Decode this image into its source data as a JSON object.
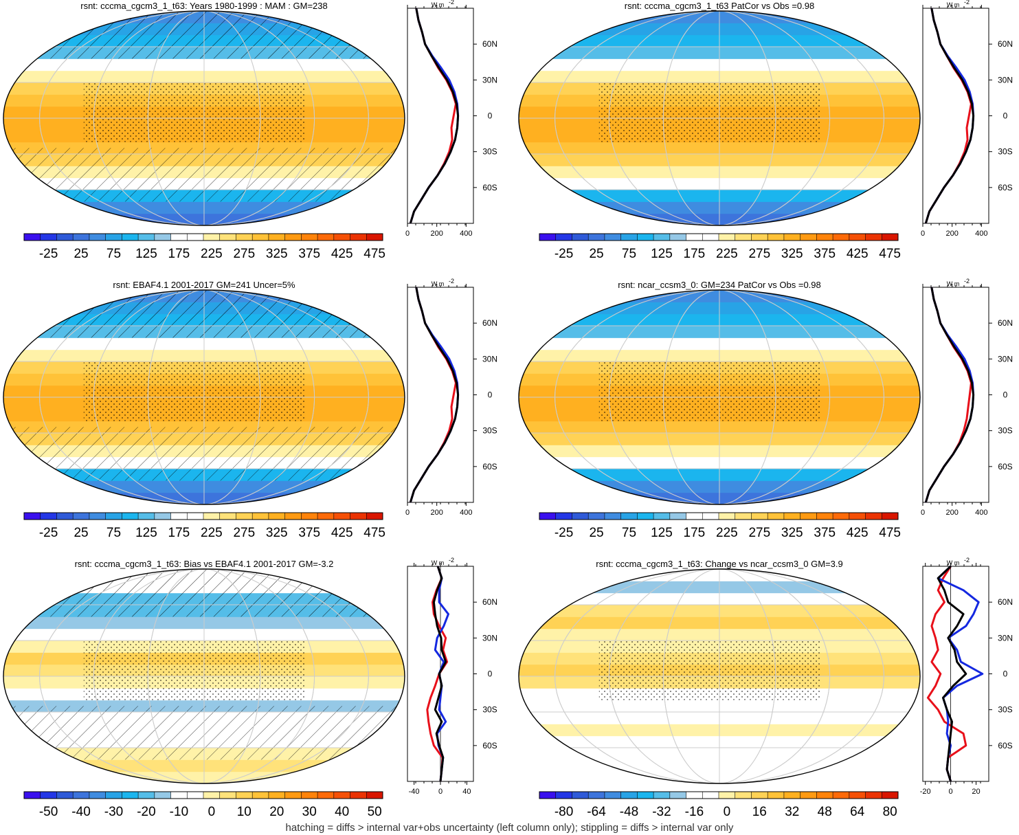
{
  "figure": {
    "footnote": "hatching = diffs > internal var+obs uncertainty (left column only); stippling = diffs > internal var only"
  },
  "palettes": {
    "abs": [
      "#3a10ee",
      "#2437e6",
      "#2f5ad8",
      "#3d74dc",
      "#3f8ce0",
      "#28a3e6",
      "#1bb5ee",
      "#55bde8",
      "#95c8e6",
      "#ffffff",
      "#ffffff",
      "#fff2a8",
      "#ffe27a",
      "#ffd255",
      "#ffc238",
      "#ffb020",
      "#ff9a12",
      "#ff830a",
      "#fd6a08",
      "#f55006",
      "#eb3303",
      "#d91600"
    ],
    "diff": [
      "#3a10ee",
      "#2437e6",
      "#2f5ad8",
      "#3d74dc",
      "#3f8ce0",
      "#28a3e6",
      "#1bb5ee",
      "#55bde8",
      "#95c8e6",
      "#ffffff",
      "#ffffff",
      "#fff2a8",
      "#ffe27a",
      "#ffd255",
      "#ffc238",
      "#ffb020",
      "#ff9a12",
      "#ff830a",
      "#fd6a08",
      "#f55006",
      "#eb3303",
      "#d91600"
    ],
    "profile_colors": {
      "black": "#000000",
      "red": "#e8101a",
      "blue": "#1428e0"
    }
  },
  "lat_labels": [
    "60N",
    "30N",
    "0",
    "30S",
    "60S"
  ],
  "unit_label": "W m",
  "unit_exponent": "-2",
  "chart_data": [
    {
      "type": "heatmap",
      "title": "rsnt: cccma_cgcm3_1_t63: Years 1980-1999 : MAM : GM=238",
      "colorbar_labels": [
        "-25",
        "25",
        "75",
        "125",
        "175",
        "225",
        "275",
        "325",
        "375",
        "425",
        "475"
      ],
      "value_range": [
        -50,
        500
      ],
      "hatching": true,
      "stippling": true,
      "profile": {
        "xlim": [
          0,
          450
        ],
        "xticks": [
          "0",
          "200",
          "400"
        ],
        "lat": [
          -90,
          -80,
          -70,
          -60,
          -50,
          -40,
          -30,
          -20,
          -10,
          0,
          10,
          20,
          30,
          40,
          50,
          60,
          70,
          80,
          90
        ],
        "series": [
          {
            "color": "black",
            "values": [
              20,
              45,
              95,
              145,
              205,
              255,
              295,
              325,
              340,
              345,
              335,
              310,
              270,
              215,
              165,
              120,
              100,
              75,
              60
            ]
          },
          {
            "color": "red",
            "values": [
              20,
              45,
              95,
              145,
              205,
              250,
              285,
              305,
              300,
              315,
              330,
              305,
              265,
              210,
              165,
              120,
              100,
              75,
              60
            ]
          },
          {
            "color": "blue",
            "values": [
              20,
              45,
              95,
              145,
              205,
              255,
              295,
              325,
              340,
              345,
              340,
              320,
              285,
              230,
              170,
              120,
              100,
              75,
              60
            ]
          }
        ]
      }
    },
    {
      "type": "heatmap",
      "title": "rsnt: cccma_cgcm3_1_t63 PatCor vs Obs =0.98",
      "colorbar_labels": [
        "-25",
        "25",
        "75",
        "125",
        "175",
        "225",
        "275",
        "325",
        "375",
        "425",
        "475"
      ],
      "value_range": [
        -50,
        500
      ],
      "hatching": false,
      "stippling": true,
      "profile": {
        "xlim": [
          0,
          450
        ],
        "xticks": [
          "0",
          "200",
          "400"
        ],
        "lat": [
          -90,
          -80,
          -70,
          -60,
          -50,
          -40,
          -30,
          -20,
          -10,
          0,
          10,
          20,
          30,
          40,
          50,
          60,
          70,
          80,
          90
        ],
        "series": [
          {
            "color": "black",
            "values": [
              20,
              45,
              95,
              145,
              205,
              255,
              295,
              325,
              340,
              345,
              335,
              310,
              270,
              215,
              165,
              120,
              100,
              75,
              60
            ]
          },
          {
            "color": "red",
            "values": [
              20,
              45,
              95,
              145,
              205,
              250,
              285,
              305,
              300,
              315,
              330,
              305,
              265,
              210,
              165,
              120,
              100,
              75,
              60
            ]
          },
          {
            "color": "blue",
            "values": [
              20,
              45,
              95,
              145,
              205,
              255,
              295,
              325,
              340,
              345,
              340,
              320,
              285,
              230,
              170,
              120,
              100,
              75,
              60
            ]
          }
        ]
      }
    },
    {
      "type": "heatmap",
      "title": "rsnt: EBAF4.1 2001-2017 GM=241 Uncer=5%",
      "colorbar_labels": [
        "-25",
        "25",
        "75",
        "125",
        "175",
        "225",
        "275",
        "325",
        "375",
        "425",
        "475"
      ],
      "value_range": [
        -50,
        500
      ],
      "hatching": true,
      "stippling": true,
      "profile": {
        "xlim": [
          0,
          450
        ],
        "xticks": [
          "0",
          "200",
          "400"
        ],
        "lat": [
          -90,
          -80,
          -70,
          -60,
          -50,
          -40,
          -30,
          -20,
          -10,
          0,
          10,
          20,
          30,
          40,
          50,
          60,
          70,
          80,
          90
        ],
        "series": [
          {
            "color": "black",
            "values": [
              20,
              45,
              95,
              145,
              205,
              255,
              295,
              325,
              340,
              345,
              335,
              310,
              270,
              215,
              165,
              120,
              100,
              75,
              60
            ]
          },
          {
            "color": "red",
            "values": [
              20,
              45,
              95,
              145,
              205,
              250,
              285,
              305,
              300,
              315,
              330,
              305,
              265,
              210,
              165,
              120,
              100,
              75,
              60
            ]
          },
          {
            "color": "blue",
            "values": [
              20,
              45,
              95,
              145,
              205,
              255,
              295,
              325,
              340,
              345,
              340,
              320,
              285,
              230,
              170,
              120,
              100,
              75,
              60
            ]
          }
        ]
      }
    },
    {
      "type": "heatmap",
      "title": "rsnt: ncar_ccsm3_0: GM=234 PatCor vs Obs =0.98",
      "colorbar_labels": [
        "-25",
        "25",
        "75",
        "125",
        "175",
        "225",
        "275",
        "325",
        "375",
        "425",
        "475"
      ],
      "value_range": [
        -50,
        500
      ],
      "hatching": false,
      "stippling": true,
      "profile": {
        "xlim": [
          0,
          450
        ],
        "xticks": [
          "0",
          "200",
          "400"
        ],
        "lat": [
          -90,
          -80,
          -70,
          -60,
          -50,
          -40,
          -30,
          -20,
          -10,
          0,
          10,
          20,
          30,
          40,
          50,
          60,
          70,
          80,
          90
        ],
        "series": [
          {
            "color": "black",
            "values": [
              20,
              45,
              95,
              145,
              205,
              255,
              295,
              325,
              340,
              345,
              335,
              310,
              270,
              215,
              165,
              120,
              100,
              75,
              60
            ]
          },
          {
            "color": "red",
            "values": [
              20,
              45,
              95,
              145,
              205,
              250,
              280,
              300,
              310,
              320,
              330,
              305,
              265,
              210,
              165,
              120,
              100,
              75,
              60
            ]
          },
          {
            "color": "blue",
            "values": [
              20,
              45,
              95,
              145,
              205,
              255,
              295,
              325,
              340,
              345,
              340,
              320,
              285,
              230,
              170,
              120,
              100,
              75,
              60
            ]
          }
        ]
      }
    },
    {
      "type": "heatmap",
      "title": "rsnt: cccma_cgcm3_1_t63: Bias vs EBAF4.1 2001-2017 GM=-3.2",
      "colorbar_labels": [
        "-50",
        "-40",
        "-30",
        "-20",
        "-10",
        "0",
        "10",
        "20",
        "30",
        "40",
        "50"
      ],
      "value_range": [
        -55,
        55
      ],
      "hatching": true,
      "stippling": true,
      "profile": {
        "xlim": [
          -50,
          50
        ],
        "xticks": [
          "-40",
          "0",
          "40"
        ],
        "lat": [
          -90,
          -80,
          -70,
          -60,
          -50,
          -40,
          -30,
          -20,
          -10,
          0,
          10,
          20,
          30,
          40,
          50,
          60,
          70,
          80,
          90
        ],
        "series": [
          {
            "color": "black",
            "values": [
              0,
              2,
              4,
              -2,
              -6,
              2,
              -8,
              -3,
              2,
              -2,
              8,
              2,
              1,
              -5,
              -8,
              -10,
              -5,
              2,
              -4
            ]
          },
          {
            "color": "red",
            "values": [
              0,
              2,
              3,
              -10,
              -15,
              -18,
              -20,
              -15,
              -8,
              -2,
              10,
              4,
              8,
              -2,
              -10,
              -12,
              -6,
              2,
              -4
            ]
          },
          {
            "color": "blue",
            "values": [
              0,
              2,
              4,
              -3,
              -5,
              8,
              -2,
              0,
              2,
              -2,
              5,
              -8,
              -5,
              5,
              12,
              -2,
              -2,
              2,
              -4
            ]
          }
        ]
      }
    },
    {
      "type": "heatmap",
      "title": "rsnt: cccma_cgcm3_1_t63: Change vs ncar_ccsm3_0 GM=3.9",
      "colorbar_labels": [
        "-80",
        "-64",
        "-48",
        "-32",
        "-16",
        "0",
        "16",
        "32",
        "48",
        "64",
        "80"
      ],
      "value_range": [
        -88,
        88
      ],
      "hatching": false,
      "stippling": true,
      "profile": {
        "xlim": [
          -22,
          30
        ],
        "xticks": [
          "-20",
          "0",
          "20"
        ],
        "lat": [
          -90,
          -80,
          -70,
          -60,
          -50,
          -40,
          -30,
          -20,
          -10,
          0,
          10,
          20,
          30,
          40,
          50,
          60,
          70,
          80,
          90
        ],
        "series": [
          {
            "color": "black",
            "values": [
              0,
              -3,
              -2,
              -1,
              0,
              1,
              -3,
              -6,
              2,
              12,
              5,
              3,
              -2,
              5,
              10,
              -2,
              -5,
              -10,
              0
            ]
          },
          {
            "color": "red",
            "values": [
              0,
              -3,
              -2,
              12,
              10,
              -5,
              -10,
              -18,
              -12,
              -8,
              -15,
              -10,
              -12,
              -15,
              -12,
              -5,
              -10,
              -6,
              0
            ]
          },
          {
            "color": "blue",
            "values": [
              0,
              -3,
              -2,
              0,
              -3,
              -2,
              -3,
              -6,
              5,
              25,
              8,
              5,
              -2,
              12,
              18,
              22,
              10,
              -10,
              0
            ]
          }
        ]
      }
    }
  ]
}
